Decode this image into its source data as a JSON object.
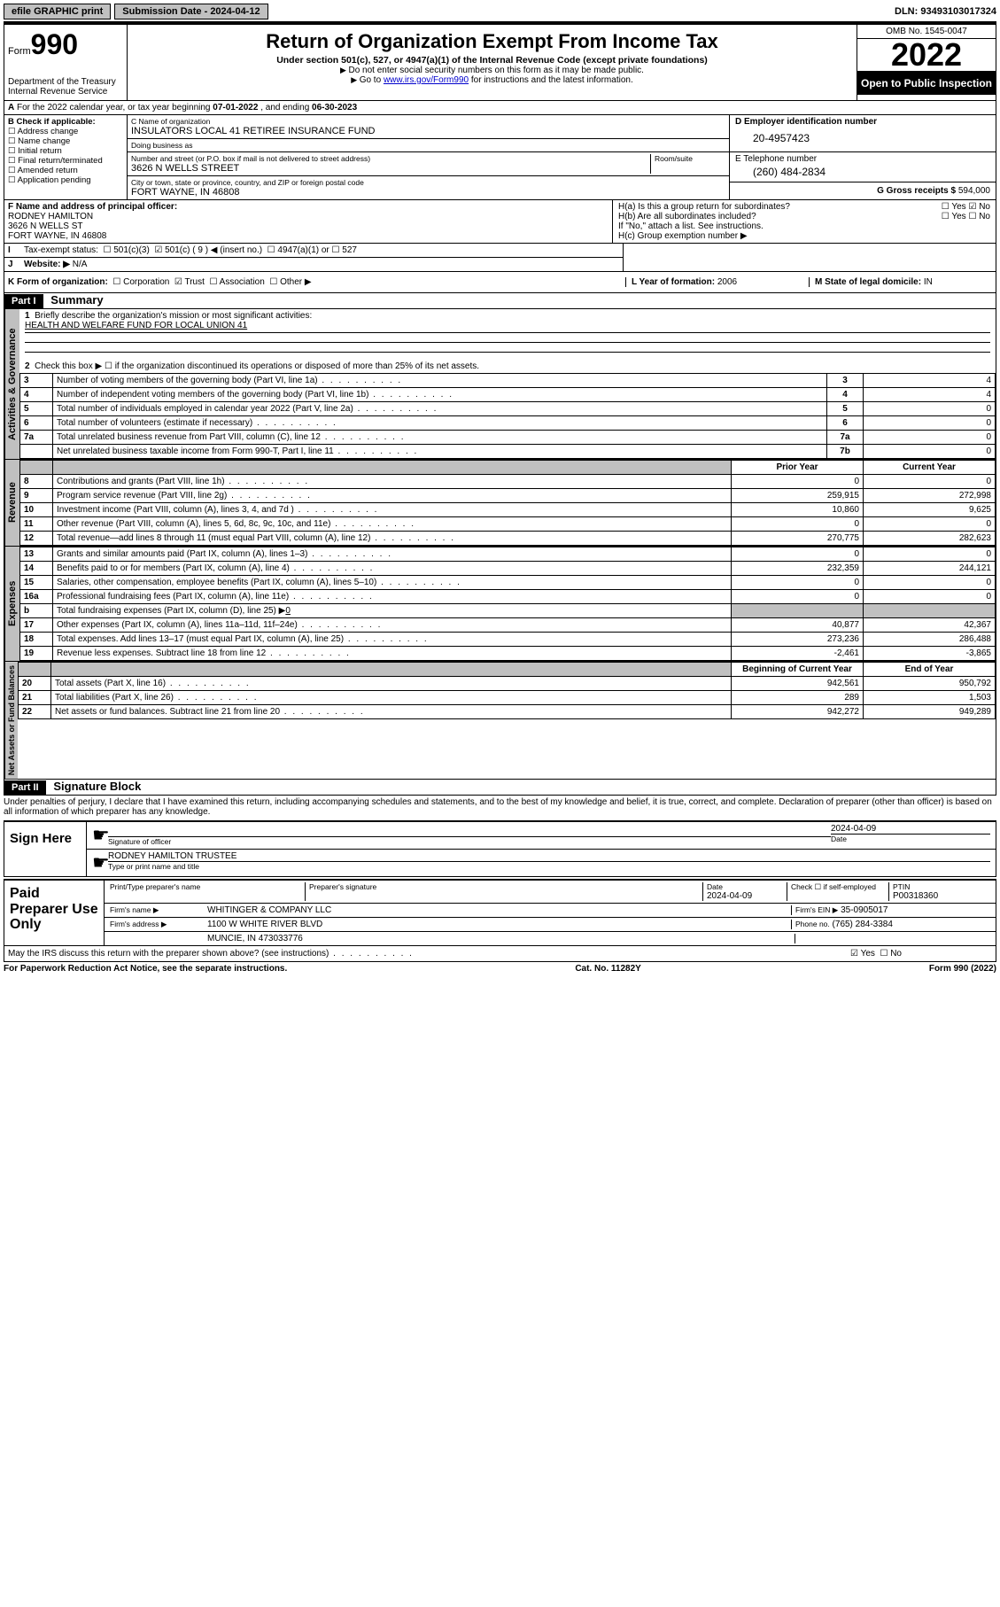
{
  "topbar": {
    "efile": "efile GRAPHIC print",
    "submission_label": "Submission Date - 2024-04-12",
    "dln": "DLN: 93493103017324"
  },
  "header": {
    "form_word": "Form",
    "form_num": "990",
    "dept": "Department of the Treasury",
    "irs": "Internal Revenue Service",
    "title": "Return of Organization Exempt From Income Tax",
    "subtitle": "Under section 501(c), 527, or 4947(a)(1) of the Internal Revenue Code (except private foundations)",
    "note1": "Do not enter social security numbers on this form as it may be made public.",
    "note2_pre": "Go to ",
    "note2_link": "www.irs.gov/Form990",
    "note2_post": " for instructions and the latest information.",
    "omb": "OMB No. 1545-0047",
    "year": "2022",
    "open": "Open to Public Inspection"
  },
  "periodA": {
    "text_pre": "For the 2022 calendar year, or tax year beginning ",
    "begin": "07-01-2022",
    "mid": " , and ending ",
    "end": "06-30-2023"
  },
  "boxB": {
    "label": "B Check if applicable:",
    "items": [
      "Address change",
      "Name change",
      "Initial return",
      "Final return/terminated",
      "Amended return",
      "Application pending"
    ]
  },
  "boxC": {
    "name_label": "C Name of organization",
    "name": "INSULATORS LOCAL 41 RETIREE INSURANCE FUND",
    "dba_label": "Doing business as",
    "dba": "",
    "street_label": "Number and street (or P.O. box if mail is not delivered to street address)",
    "room_label": "Room/suite",
    "street": "3626 N WELLS STREET",
    "city_label": "City or town, state or province, country, and ZIP or foreign postal code",
    "city": "FORT WAYNE, IN  46808"
  },
  "boxD": {
    "label": "D Employer identification number",
    "value": "20-4957423"
  },
  "boxE": {
    "label": "E Telephone number",
    "value": "(260) 484-2834"
  },
  "boxG": {
    "label": "G Gross receipts $",
    "value": "594,000"
  },
  "boxF": {
    "label": "F Name and address of principal officer:",
    "name": "RODNEY HAMILTON",
    "street": "3626 N WELLS ST",
    "city": "FORT WAYNE, IN  46808"
  },
  "boxH": {
    "a_label": "H(a)  Is this a group return for subordinates?",
    "b_label": "H(b)  Are all subordinates included?",
    "attach": "If \"No,\" attach a list. See instructions.",
    "c_label": "H(c)  Group exemption number ▶",
    "yes": "Yes",
    "no": "No"
  },
  "boxI": {
    "label": "Tax-exempt status:",
    "c3": "501(c)(3)",
    "c": "501(c) ( 9 ) ◀ (insert no.)",
    "a1": "4947(a)(1) or",
    "527": "527"
  },
  "boxJ": {
    "label": "Website: ▶",
    "value": "N/A"
  },
  "boxK": {
    "label": "K Form of organization:",
    "corp": "Corporation",
    "trust": "Trust",
    "assoc": "Association",
    "other": "Other ▶"
  },
  "boxL": {
    "label": "L Year of formation:",
    "value": "2006"
  },
  "boxM": {
    "label": "M State of legal domicile:",
    "value": "IN"
  },
  "part1": {
    "header": "Part I",
    "title": "Summary",
    "tab_ag": "Activities & Governance",
    "tab_rev": "Revenue",
    "tab_exp": "Expenses",
    "tab_na": "Net Assets or Fund Balances",
    "l1": "Briefly describe the organization's mission or most significant activities:",
    "mission": "HEALTH AND WELFARE FUND FOR LOCAL UNION 41",
    "l2": "Check this box ▶ ☐  if the organization discontinued its operations or disposed of more than 25% of its net assets.",
    "rows_ag": [
      {
        "n": "3",
        "d": "Number of voting members of the governing body (Part VI, line 1a)",
        "c": "3",
        "v": "4"
      },
      {
        "n": "4",
        "d": "Number of independent voting members of the governing body (Part VI, line 1b)",
        "c": "4",
        "v": "4"
      },
      {
        "n": "5",
        "d": "Total number of individuals employed in calendar year 2022 (Part V, line 2a)",
        "c": "5",
        "v": "0"
      },
      {
        "n": "6",
        "d": "Total number of volunteers (estimate if necessary)",
        "c": "6",
        "v": "0"
      },
      {
        "n": "7a",
        "d": "Total unrelated business revenue from Part VIII, column (C), line 12",
        "c": "7a",
        "v": "0"
      },
      {
        "n": "",
        "d": "Net unrelated business taxable income from Form 990-T, Part I, line 11",
        "c": "7b",
        "v": "0"
      }
    ],
    "col_prior": "Prior Year",
    "col_current": "Current Year",
    "rows_rev": [
      {
        "n": "8",
        "d": "Contributions and grants (Part VIII, line 1h)",
        "p": "0",
        "c": "0"
      },
      {
        "n": "9",
        "d": "Program service revenue (Part VIII, line 2g)",
        "p": "259,915",
        "c": "272,998"
      },
      {
        "n": "10",
        "d": "Investment income (Part VIII, column (A), lines 3, 4, and 7d )",
        "p": "10,860",
        "c": "9,625"
      },
      {
        "n": "11",
        "d": "Other revenue (Part VIII, column (A), lines 5, 6d, 8c, 9c, 10c, and 11e)",
        "p": "0",
        "c": "0"
      },
      {
        "n": "12",
        "d": "Total revenue—add lines 8 through 11 (must equal Part VIII, column (A), line 12)",
        "p": "270,775",
        "c": "282,623"
      }
    ],
    "rows_exp": [
      {
        "n": "13",
        "d": "Grants and similar amounts paid (Part IX, column (A), lines 1–3)",
        "p": "0",
        "c": "0"
      },
      {
        "n": "14",
        "d": "Benefits paid to or for members (Part IX, column (A), line 4)",
        "p": "232,359",
        "c": "244,121"
      },
      {
        "n": "15",
        "d": "Salaries, other compensation, employee benefits (Part IX, column (A), lines 5–10)",
        "p": "0",
        "c": "0"
      },
      {
        "n": "16a",
        "d": "Professional fundraising fees (Part IX, column (A), line 11e)",
        "p": "0",
        "c": "0"
      }
    ],
    "row_16b": {
      "n": "b",
      "d": "Total fundraising expenses (Part IX, column (D), line 25) ▶",
      "v": "0"
    },
    "rows_exp2": [
      {
        "n": "17",
        "d": "Other expenses (Part IX, column (A), lines 11a–11d, 11f–24e)",
        "p": "40,877",
        "c": "42,367"
      },
      {
        "n": "18",
        "d": "Total expenses. Add lines 13–17 (must equal Part IX, column (A), line 25)",
        "p": "273,236",
        "c": "286,488"
      },
      {
        "n": "19",
        "d": "Revenue less expenses. Subtract line 18 from line 12",
        "p": "-2,461",
        "c": "-3,865"
      }
    ],
    "col_begin": "Beginning of Current Year",
    "col_end": "End of Year",
    "rows_na": [
      {
        "n": "20",
        "d": "Total assets (Part X, line 16)",
        "p": "942,561",
        "c": "950,792"
      },
      {
        "n": "21",
        "d": "Total liabilities (Part X, line 26)",
        "p": "289",
        "c": "1,503"
      },
      {
        "n": "22",
        "d": "Net assets or fund balances. Subtract line 21 from line 20",
        "p": "942,272",
        "c": "949,289"
      }
    ]
  },
  "part2": {
    "header": "Part II",
    "title": "Signature Block",
    "decl": "Under penalties of perjury, I declare that I have examined this return, including accompanying schedules and statements, and to the best of my knowledge and belief, it is true, correct, and complete. Declaration of preparer (other than officer) is based on all information of which preparer has any knowledge.",
    "sign_here": "Sign Here",
    "sig_officer": "Signature of officer",
    "date_lbl": "Date",
    "sig_date": "2024-04-09",
    "officer_name": "RODNEY HAMILTON  TRUSTEE",
    "type_name": "Type or print name and title",
    "paid": "Paid Preparer Use Only",
    "prep_name_lbl": "Print/Type preparer's name",
    "prep_sig_lbl": "Preparer's signature",
    "prep_date_lbl": "Date",
    "prep_date": "2024-04-09",
    "check_self": "Check ☐ if self-employed",
    "ptin_lbl": "PTIN",
    "ptin": "P00318360",
    "firm_name_lbl": "Firm's name   ▶",
    "firm_name": "WHITINGER & COMPANY LLC",
    "firm_ein_lbl": "Firm's EIN ▶",
    "firm_ein": "35-0905017",
    "firm_addr_lbl": "Firm's address ▶",
    "firm_addr1": "1100 W WHITE RIVER BLVD",
    "firm_addr2": "MUNCIE, IN  473033776",
    "phone_lbl": "Phone no.",
    "phone": "(765) 284-3384",
    "discuss": "May the IRS discuss this return with the preparer shown above? (see instructions)"
  },
  "footer": {
    "left": "For Paperwork Reduction Act Notice, see the separate instructions.",
    "mid": "Cat. No. 11282Y",
    "right": "Form 990 (2022)"
  }
}
